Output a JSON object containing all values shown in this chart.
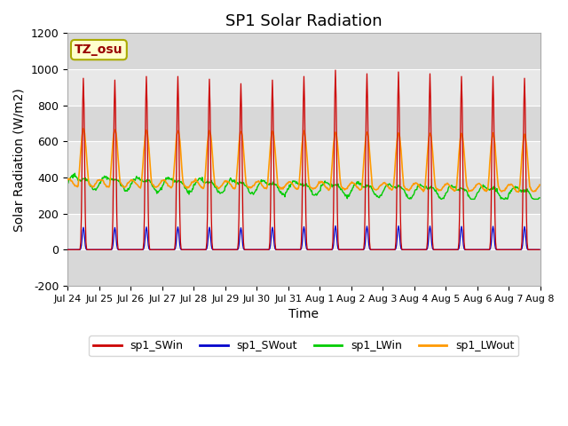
{
  "title": "SP1 Solar Radiation",
  "xlabel": "Time",
  "ylabel": "Solar Radiation (W/m2)",
  "ylim": [
    -200,
    1200
  ],
  "yticks": [
    -200,
    0,
    200,
    400,
    600,
    800,
    1000,
    1200
  ],
  "xlim": [
    0,
    15
  ],
  "x_tick_labels": [
    "Jul 24",
    "Jul 25",
    "Jul 26",
    "Jul 27",
    "Jul 28",
    "Jul 29",
    "Jul 30",
    "Jul 31",
    "Aug 1",
    "Aug 2",
    "Aug 3",
    "Aug 4",
    "Aug 5",
    "Aug 6",
    "Aug 7",
    "Aug 8"
  ],
  "colors": {
    "SWin": "#cc0000",
    "SWout": "#0000cc",
    "LWin": "#00cc00",
    "LWout": "#ff9900"
  },
  "tz_label": "TZ_osu",
  "tz_label_color": "#990000",
  "tz_box_facecolor": "#ffffcc",
  "tz_box_edgecolor": "#aaaa00",
  "background_fig": "#ffffff",
  "background_plot": "#d8d8d8",
  "band_colors": [
    "#d8d8d8",
    "#e8e8e8"
  ],
  "legend_labels": [
    "sp1_SWin",
    "sp1_SWout",
    "sp1_LWin",
    "sp1_LWout"
  ],
  "grid_color": "#ffffff",
  "title_fontsize": 13,
  "axis_fontsize": 10,
  "tick_fontsize": 9
}
